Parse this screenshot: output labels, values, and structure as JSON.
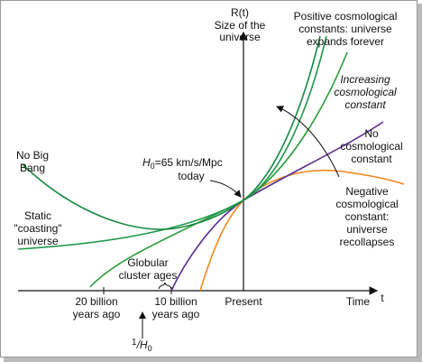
{
  "y_axis": {
    "symbol": "R(t)",
    "label": [
      "Size of the",
      "universe"
    ]
  },
  "x_axis": {
    "label": "Time",
    "symbol": "t",
    "ticks": [
      [
        "20 billion",
        "years ago"
      ],
      [
        "10 billion",
        "years ago"
      ],
      [
        "Present"
      ]
    ]
  },
  "curves": {
    "positive": [
      "Positive cosmological",
      "constants: universe",
      "expands forever"
    ],
    "increasing": [
      "Increasing",
      "cosmological",
      "constant"
    ],
    "none": [
      "No",
      "cosmological",
      "constant"
    ],
    "negative": [
      "Negative",
      "cosmological",
      "constant:",
      "universe",
      "recollapses"
    ],
    "no_big_bang": [
      "No Big",
      "Bang"
    ],
    "static": [
      "Static",
      "\"coasting\"",
      "universe"
    ]
  },
  "hubble": {
    "symbol": "H",
    "subscript": "0",
    "value": "=65 km/s/Mpc",
    "note": "today"
  },
  "globular": [
    "Globular",
    "cluster ages"
  ],
  "hubble_time": {
    "numerator": "1",
    "symbol": "/H",
    "subscript": "0"
  }
}
